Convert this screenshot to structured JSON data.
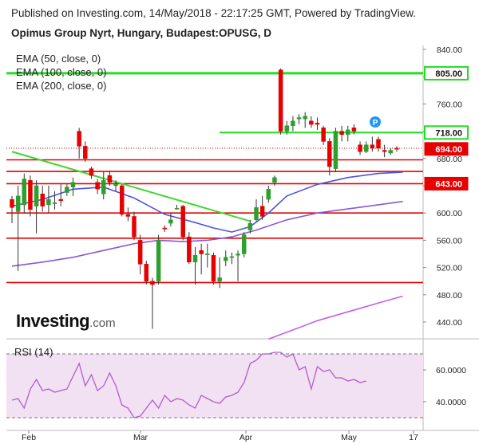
{
  "header": {
    "published": "Published on Investing.com, 14/May/2018 - 22:17:25 GMT, Powered by TradingView.",
    "symbol": "Opimus Group Nyrt, Hungary, Budapest:OPUSG, D"
  },
  "legend": {
    "ema50": "EMA (50, close, 0)",
    "ema100": "EMA (100, close, 0)",
    "ema200": "EMA (200, close, 0)",
    "rsi": "RSI (14)"
  },
  "logo": {
    "brand": "Investing",
    "suffix": ".com"
  },
  "colors": {
    "up": "#2ca02c",
    "down": "#e60000",
    "ema50": "#4a56e0",
    "ema100": "#8a56dc",
    "ema200": "#c060ee",
    "trend": "#3fd82f",
    "hline_green": "#22dd22",
    "hline_red": "#e60000",
    "rsi_line": "#b05ecb",
    "rsi_band": "#f2e1f2"
  },
  "chart_data": {
    "type": "candlestick",
    "x_ticks": [
      "Feb",
      "Mar",
      "Apr",
      "May",
      "17"
    ],
    "y_ticks": [
      "840.00",
      "800.00",
      "760.00",
      "720.00",
      "680.00",
      "640.00",
      "600.00",
      "560.00",
      "520.00",
      "480.00",
      "440.00"
    ],
    "ylim": [
      410,
      845
    ],
    "price_tags": [
      {
        "label": "805.00",
        "value": 805,
        "style": "green"
      },
      {
        "label": "718.00",
        "value": 718,
        "style": "green"
      },
      {
        "label": "694.00",
        "value": 694,
        "style": "red"
      },
      {
        "label": "643.00",
        "value": 643,
        "style": "red"
      }
    ],
    "horizontal_lines": [
      {
        "value": 805,
        "style": "green"
      },
      {
        "value": 718,
        "style": "green",
        "from_index": 34
      },
      {
        "value": 678,
        "style": "red"
      },
      {
        "value": 661,
        "style": "red"
      },
      {
        "value": 643,
        "style": "red"
      },
      {
        "value": 600,
        "style": "red"
      },
      {
        "value": 563,
        "style": "red"
      },
      {
        "value": 498,
        "style": "red"
      }
    ],
    "trendline": {
      "start": {
        "index": 0,
        "value": 690
      },
      "end": {
        "index": 39,
        "value": 588
      }
    },
    "candles": [
      {
        "o": 620,
        "h": 625,
        "l": 585,
        "c": 608
      },
      {
        "o": 602,
        "h": 640,
        "l": 515,
        "c": 625
      },
      {
        "o": 612,
        "h": 658,
        "l": 600,
        "c": 650
      },
      {
        "o": 648,
        "h": 655,
        "l": 595,
        "c": 605
      },
      {
        "o": 610,
        "h": 648,
        "l": 570,
        "c": 640
      },
      {
        "o": 628,
        "h": 640,
        "l": 602,
        "c": 610
      },
      {
        "o": 612,
        "h": 640,
        "l": 600,
        "c": 620
      },
      {
        "o": 615,
        "h": 632,
        "l": 605,
        "c": 615
      },
      {
        "o": 620,
        "h": 642,
        "l": 610,
        "c": 618
      },
      {
        "o": 630,
        "h": 642,
        "l": 625,
        "c": 638
      },
      {
        "o": 638,
        "h": 652,
        "l": 625,
        "c": 645
      },
      {
        "o": 720,
        "h": 725,
        "l": 680,
        "c": 698
      },
      {
        "o": 698,
        "h": 705,
        "l": 675,
        "c": 680
      },
      {
        "o": 665,
        "h": 668,
        "l": 650,
        "c": 655
      },
      {
        "o": 645,
        "h": 650,
        "l": 628,
        "c": 635
      },
      {
        "o": 628,
        "h": 660,
        "l": 620,
        "c": 648
      },
      {
        "o": 655,
        "h": 662,
        "l": 640,
        "c": 645
      },
      {
        "o": 640,
        "h": 648,
        "l": 632,
        "c": 642
      },
      {
        "o": 640,
        "h": 642,
        "l": 595,
        "c": 598
      },
      {
        "o": 598,
        "h": 608,
        "l": 588,
        "c": 595
      },
      {
        "o": 595,
        "h": 602,
        "l": 560,
        "c": 565
      },
      {
        "o": 560,
        "h": 568,
        "l": 510,
        "c": 525
      },
      {
        "o": 525,
        "h": 530,
        "l": 495,
        "c": 500
      },
      {
        "o": 500,
        "h": 505,
        "l": 430,
        "c": 495
      },
      {
        "o": 500,
        "h": 568,
        "l": 495,
        "c": 560
      },
      {
        "o": 578,
        "h": 582,
        "l": 572,
        "c": 577
      },
      {
        "o": 585,
        "h": 600,
        "l": 580,
        "c": 590
      },
      {
        "o": 607,
        "h": 612,
        "l": 605,
        "c": 607
      },
      {
        "o": 610,
        "h": 612,
        "l": 560,
        "c": 565
      },
      {
        "o": 565,
        "h": 572,
        "l": 525,
        "c": 528
      },
      {
        "o": 528,
        "h": 550,
        "l": 495,
        "c": 538
      },
      {
        "o": 545,
        "h": 555,
        "l": 510,
        "c": 540
      },
      {
        "o": 540,
        "h": 555,
        "l": 520,
        "c": 540
      },
      {
        "o": 538,
        "h": 542,
        "l": 495,
        "c": 500
      },
      {
        "o": 500,
        "h": 535,
        "l": 490,
        "c": 505
      },
      {
        "o": 530,
        "h": 545,
        "l": 522,
        "c": 535
      },
      {
        "o": 535,
        "h": 542,
        "l": 525,
        "c": 536
      },
      {
        "o": 538,
        "h": 545,
        "l": 500,
        "c": 540
      },
      {
        "o": 540,
        "h": 572,
        "l": 535,
        "c": 568
      },
      {
        "o": 575,
        "h": 590,
        "l": 570,
        "c": 585
      },
      {
        "o": 590,
        "h": 620,
        "l": 588,
        "c": 608
      },
      {
        "o": 610,
        "h": 625,
        "l": 590,
        "c": 595
      },
      {
        "o": 620,
        "h": 640,
        "l": 615,
        "c": 635
      },
      {
        "o": 645,
        "h": 655,
        "l": 640,
        "c": 652
      },
      {
        "o": 810,
        "h": 812,
        "l": 715,
        "c": 720
      },
      {
        "o": 720,
        "h": 735,
        "l": 715,
        "c": 728
      },
      {
        "o": 728,
        "h": 742,
        "l": 720,
        "c": 735
      },
      {
        "o": 738,
        "h": 745,
        "l": 730,
        "c": 740
      },
      {
        "o": 738,
        "h": 748,
        "l": 725,
        "c": 742
      },
      {
        "o": 735,
        "h": 742,
        "l": 725,
        "c": 730
      },
      {
        "o": 732,
        "h": 740,
        "l": 722,
        "c": 730
      },
      {
        "o": 725,
        "h": 728,
        "l": 700,
        "c": 705
      },
      {
        "o": 705,
        "h": 710,
        "l": 655,
        "c": 668
      },
      {
        "o": 665,
        "h": 725,
        "l": 660,
        "c": 720
      },
      {
        "o": 720,
        "h": 728,
        "l": 705,
        "c": 715
      },
      {
        "o": 715,
        "h": 728,
        "l": 705,
        "c": 722
      },
      {
        "o": 725,
        "h": 730,
        "l": 715,
        "c": 720
      },
      {
        "o": 700,
        "h": 705,
        "l": 685,
        "c": 690
      },
      {
        "o": 690,
        "h": 705,
        "l": 688,
        "c": 700
      },
      {
        "o": 700,
        "h": 712,
        "l": 690,
        "c": 695
      },
      {
        "o": 708,
        "h": 712,
        "l": 690,
        "c": 695
      },
      {
        "o": 692,
        "h": 700,
        "l": 682,
        "c": 690
      },
      {
        "o": 688,
        "h": 695,
        "l": 685,
        "c": 692
      },
      {
        "o": 695,
        "h": 698,
        "l": 690,
        "c": 694
      }
    ],
    "ema50": [
      {
        "i": 0,
        "v": 610
      },
      {
        "i": 5,
        "v": 620
      },
      {
        "i": 10,
        "v": 635
      },
      {
        "i": 15,
        "v": 638
      },
      {
        "i": 20,
        "v": 622
      },
      {
        "i": 25,
        "v": 598
      },
      {
        "i": 30,
        "v": 586
      },
      {
        "i": 33,
        "v": 578
      },
      {
        "i": 36,
        "v": 572
      },
      {
        "i": 39,
        "v": 580
      },
      {
        "i": 42,
        "v": 600
      },
      {
        "i": 45,
        "v": 625
      },
      {
        "i": 50,
        "v": 642
      },
      {
        "i": 55,
        "v": 652
      },
      {
        "i": 60,
        "v": 658
      },
      {
        "i": 64,
        "v": 660
      }
    ],
    "ema100": [
      {
        "i": 0,
        "v": 522
      },
      {
        "i": 5,
        "v": 528
      },
      {
        "i": 10,
        "v": 535
      },
      {
        "i": 15,
        "v": 545
      },
      {
        "i": 20,
        "v": 555
      },
      {
        "i": 24,
        "v": 560
      },
      {
        "i": 28,
        "v": 558
      },
      {
        "i": 32,
        "v": 560
      },
      {
        "i": 36,
        "v": 565
      },
      {
        "i": 40,
        "v": 575
      },
      {
        "i": 45,
        "v": 590
      },
      {
        "i": 50,
        "v": 600
      },
      {
        "i": 55,
        "v": 606
      },
      {
        "i": 60,
        "v": 612
      },
      {
        "i": 64,
        "v": 617
      }
    ],
    "ema200": [
      {
        "i": 42,
        "v": 415
      },
      {
        "i": 45,
        "v": 425
      },
      {
        "i": 50,
        "v": 442
      },
      {
        "i": 55,
        "v": 455
      },
      {
        "i": 60,
        "v": 468
      },
      {
        "i": 64,
        "v": 478
      }
    ],
    "rsi": {
      "label": "RSI (14)",
      "y_ticks": [
        "60.0000",
        "40.0000"
      ],
      "levels": [
        30,
        70
      ],
      "values": [
        41,
        42,
        36,
        48,
        54,
        47,
        48,
        46,
        47,
        48,
        56,
        64,
        50,
        57,
        47,
        50,
        58,
        50,
        38,
        36,
        30,
        31,
        36,
        41,
        36,
        44,
        40,
        42,
        41,
        38,
        36,
        44,
        42,
        40,
        39,
        43,
        44,
        46,
        52,
        64,
        66,
        70,
        70,
        71,
        71,
        68,
        70,
        60,
        62,
        48,
        62,
        59,
        60,
        55,
        55,
        53,
        54,
        52,
        53
      ]
    }
  }
}
